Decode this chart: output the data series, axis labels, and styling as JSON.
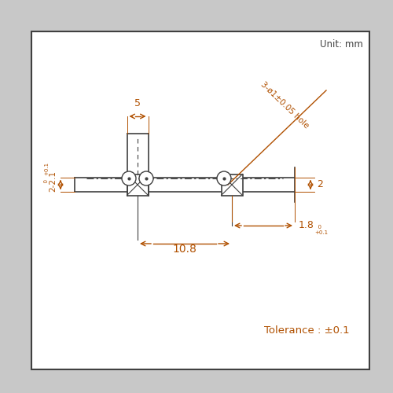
{
  "bg_color": "#c8c8c8",
  "box_color": "#ffffff",
  "line_color": "#404040",
  "dim_color": "#b05000",
  "unit_text": "Unit: mm",
  "tolerance_text": "Tolerance : ±0.1",
  "dim_108": "10.8",
  "dim_18": "1.8",
  "dim_221": "2-2.1",
  "dim_2": "2",
  "dim_5": "5",
  "hole_text": "3-ø1±0.05 hole"
}
